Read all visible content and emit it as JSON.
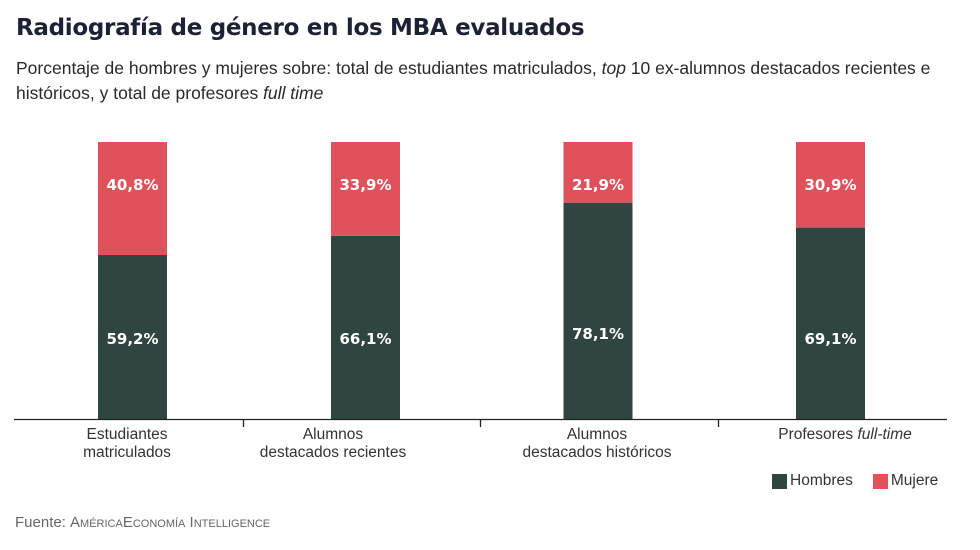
{
  "header": {
    "title": "Radiografía de género en los MBA evaluados",
    "subtitle_part1": "Porcentaje de hombres y mujeres sobre: total de estudiantes matriculados, ",
    "subtitle_italic1": "top",
    "subtitle_part2": " 10 ex-alumnos destacados recientes e históricos, y total de profesores ",
    "subtitle_italic2": "full time"
  },
  "chart_data": {
    "type": "bar",
    "stacked": true,
    "title": "Radiografía de género en los MBA evaluados",
    "categories": [
      {
        "line1": "Estudiantes",
        "line2": "matriculados",
        "italic": ""
      },
      {
        "line1": "Alumnos",
        "line2": "destacados recientes",
        "italic": ""
      },
      {
        "line1": "Alumnos",
        "line2": "destacados históricos",
        "italic": ""
      },
      {
        "line1": "Profesores ",
        "line2": "",
        "italic": "full-time"
      }
    ],
    "series": [
      {
        "name": "Hombres",
        "color": "#2f4540",
        "values": [
          59.2,
          66.1,
          78.1,
          69.1
        ],
        "labels": [
          "59,2%",
          "66,1%",
          "78,1%",
          "69,1%"
        ]
      },
      {
        "name": "Mujere",
        "color": "#e0525b",
        "values": [
          40.8,
          33.9,
          21.9,
          30.9
        ],
        "labels": [
          "40,8%",
          "33,9%",
          "21,9%",
          "30,9%"
        ]
      }
    ],
    "ylim": [
      0,
      100
    ],
    "grid": false,
    "legend_position": "bottom-right"
  },
  "legend": {
    "hombres": "Hombres",
    "mujeres": "Mujere"
  },
  "source": {
    "prefix": "Fuente: ",
    "name": "AméricaEconomía Intelligence"
  }
}
